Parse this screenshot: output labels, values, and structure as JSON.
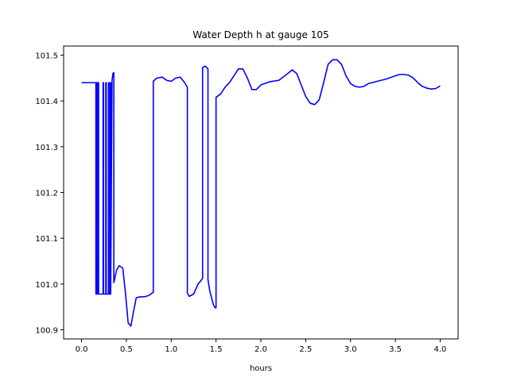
{
  "chart_data": {
    "type": "line",
    "title": "Water Depth h at gauge 105",
    "xlabel": "hours",
    "ylabel": "",
    "xlim": [
      -0.2,
      4.2
    ],
    "ylim": [
      100.88,
      101.52
    ],
    "grid": false,
    "xticks": [
      0.0,
      0.5,
      1.0,
      1.5,
      2.0,
      2.5,
      3.0,
      3.5,
      4.0
    ],
    "xtick_labels": [
      "0.0",
      "0.5",
      "1.0",
      "1.5",
      "2.0",
      "2.5",
      "3.0",
      "3.5",
      "4.0"
    ],
    "yticks": [
      100.9,
      101.0,
      101.1,
      101.2,
      101.3,
      101.4,
      101.5
    ],
    "ytick_labels": [
      "100.9",
      "101.0",
      "101.1",
      "101.2",
      "101.3",
      "101.4",
      "101.5"
    ],
    "series": [
      {
        "color": "#0000ff",
        "x": [
          0.0,
          0.16,
          0.16,
          0.165,
          0.165,
          0.175,
          0.175,
          0.18,
          0.18,
          0.19,
          0.19,
          0.24,
          0.24,
          0.245,
          0.245,
          0.27,
          0.27,
          0.275,
          0.275,
          0.3,
          0.3,
          0.305,
          0.305,
          0.32,
          0.32,
          0.325,
          0.325,
          0.34,
          0.35,
          0.36,
          0.36,
          0.39,
          0.42,
          0.46,
          0.49,
          0.52,
          0.55,
          0.58,
          0.61,
          0.65,
          0.7,
          0.75,
          0.8,
          0.8,
          0.84,
          0.9,
          0.95,
          1.0,
          1.05,
          1.1,
          1.15,
          1.18,
          1.18,
          1.2,
          1.25,
          1.3,
          1.35,
          1.35,
          1.38,
          1.41,
          1.41,
          1.43,
          1.47,
          1.49,
          1.5,
          1.5,
          1.55,
          1.6,
          1.65,
          1.7,
          1.75,
          1.8,
          1.85,
          1.9,
          1.95,
          2.0,
          2.1,
          2.2,
          2.3,
          2.35,
          2.4,
          2.45,
          2.5,
          2.55,
          2.6,
          2.65,
          2.7,
          2.75,
          2.8,
          2.85,
          2.9,
          2.95,
          3.0,
          3.05,
          3.1,
          3.15,
          3.2,
          3.3,
          3.4,
          3.5,
          3.55,
          3.6,
          3.65,
          3.7,
          3.75,
          3.8,
          3.85,
          3.9,
          3.95,
          4.0
        ],
        "values": [
          101.44,
          101.44,
          100.978,
          100.978,
          101.44,
          101.44,
          100.978,
          100.978,
          101.44,
          101.44,
          100.978,
          100.978,
          101.44,
          101.44,
          100.978,
          100.978,
          101.44,
          101.44,
          100.978,
          100.978,
          101.44,
          101.44,
          100.978,
          100.978,
          101.44,
          101.44,
          100.978,
          101.445,
          101.46,
          101.462,
          101.003,
          101.03,
          101.04,
          101.035,
          100.98,
          100.915,
          100.908,
          100.94,
          100.97,
          100.972,
          100.972,
          100.975,
          100.982,
          101.443,
          101.45,
          101.452,
          101.445,
          101.443,
          101.45,
          101.452,
          101.44,
          101.43,
          100.98,
          100.973,
          100.978,
          101.0,
          101.012,
          101.473,
          101.476,
          101.47,
          101.01,
          100.985,
          100.955,
          100.948,
          100.948,
          101.408,
          101.415,
          101.43,
          101.44,
          101.455,
          101.47,
          101.47,
          101.45,
          101.425,
          101.425,
          101.435,
          101.442,
          101.445,
          101.46,
          101.468,
          101.46,
          101.435,
          101.41,
          101.395,
          101.392,
          101.402,
          101.44,
          101.48,
          101.49,
          101.49,
          101.48,
          101.455,
          101.438,
          101.432,
          101.43,
          101.432,
          101.438,
          101.443,
          101.448,
          101.455,
          101.458,
          101.458,
          101.456,
          101.45,
          101.44,
          101.432,
          101.428,
          101.426,
          101.427,
          101.433
        ]
      }
    ]
  }
}
